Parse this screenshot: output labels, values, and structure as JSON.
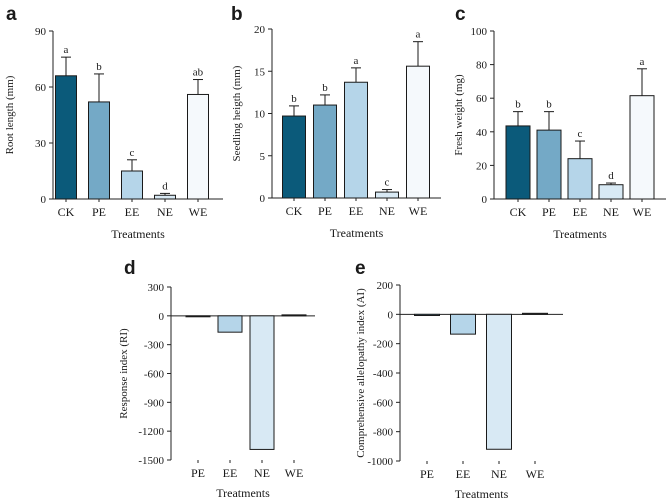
{
  "chart_data": [
    {
      "id": "a",
      "type": "bar",
      "panel_label": "a",
      "title": "",
      "xlabel": "Treatments",
      "ylabel": "Root length (mm)",
      "categories": [
        "CK",
        "PE",
        "EE",
        "NE",
        "WE"
      ],
      "values": [
        66,
        52,
        15,
        2,
        56
      ],
      "errors": [
        10,
        15,
        6,
        1,
        8
      ],
      "significance": [
        "a",
        "b",
        "c",
        "d",
        "ab"
      ],
      "ylim": [
        0,
        90
      ],
      "yticks": [
        0,
        30,
        60,
        90
      ],
      "bar_colors": [
        "#0b5a7a",
        "#74a9c6",
        "#b5d5e9",
        "#d8e9f4",
        "#f5f9fc"
      ],
      "grid": false
    },
    {
      "id": "b",
      "type": "bar",
      "panel_label": "b",
      "title": "",
      "xlabel": "Treatments",
      "ylabel": "Seedling heigth (mm)",
      "categories": [
        "CK",
        "PE",
        "EE",
        "NE",
        "WE"
      ],
      "values": [
        9.7,
        11,
        13.7,
        0.7,
        15.6
      ],
      "errors": [
        1.2,
        1.2,
        1.7,
        0.3,
        2.9
      ],
      "significance": [
        "b",
        "b",
        "a",
        "c",
        "a"
      ],
      "ylim": [
        0,
        20
      ],
      "yticks": [
        0,
        5,
        10,
        15,
        20
      ],
      "bar_colors": [
        "#0b5a7a",
        "#74a9c6",
        "#b5d5e9",
        "#d8e9f4",
        "#f5f9fc"
      ],
      "grid": false
    },
    {
      "id": "c",
      "type": "bar",
      "panel_label": "c",
      "title": "",
      "xlabel": "Treatments",
      "ylabel": "Fresh weight (mg)",
      "categories": [
        "CK",
        "PE",
        "EE",
        "NE",
        "WE"
      ],
      "values": [
        43.5,
        41,
        24,
        8.5,
        61.5
      ],
      "errors": [
        8.5,
        11,
        10.5,
        1,
        16
      ],
      "significance": [
        "b",
        "b",
        "c",
        "d",
        "a"
      ],
      "ylim": [
        0,
        100
      ],
      "yticks": [
        0,
        20,
        40,
        60,
        80,
        100
      ],
      "bar_colors": [
        "#0b5a7a",
        "#74a9c6",
        "#b5d5e9",
        "#d8e9f4",
        "#f5f9fc"
      ],
      "grid": false
    },
    {
      "id": "d",
      "type": "bar",
      "panel_label": "d",
      "title": "",
      "xlabel": "Treatments",
      "ylabel": "Response index (RI)",
      "categories": [
        "PE",
        "EE",
        "NE",
        "WE"
      ],
      "values": [
        -10,
        -170,
        -1390,
        10
      ],
      "ylim": [
        -1500,
        300
      ],
      "yticks": [
        -1500,
        -1200,
        -900,
        -600,
        -300,
        0,
        300
      ],
      "bar_colors": [
        "#74a9c6",
        "#b5d5e9",
        "#d8e9f4",
        "#f5f9fc"
      ],
      "grid": false
    },
    {
      "id": "e",
      "type": "bar",
      "panel_label": "e",
      "title": "",
      "xlabel": "Treatments",
      "ylabel": "Comprehensive allelopathy index (AI)",
      "categories": [
        "PE",
        "EE",
        "NE",
        "WE"
      ],
      "values": [
        -8,
        -135,
        -920,
        7
      ],
      "ylim": [
        -1000,
        200
      ],
      "yticks": [
        -1000,
        -800,
        -600,
        -400,
        -200,
        0,
        200
      ],
      "bar_colors": [
        "#74a9c6",
        "#b5d5e9",
        "#d8e9f4",
        "#f5f9fc"
      ],
      "grid": false
    }
  ]
}
